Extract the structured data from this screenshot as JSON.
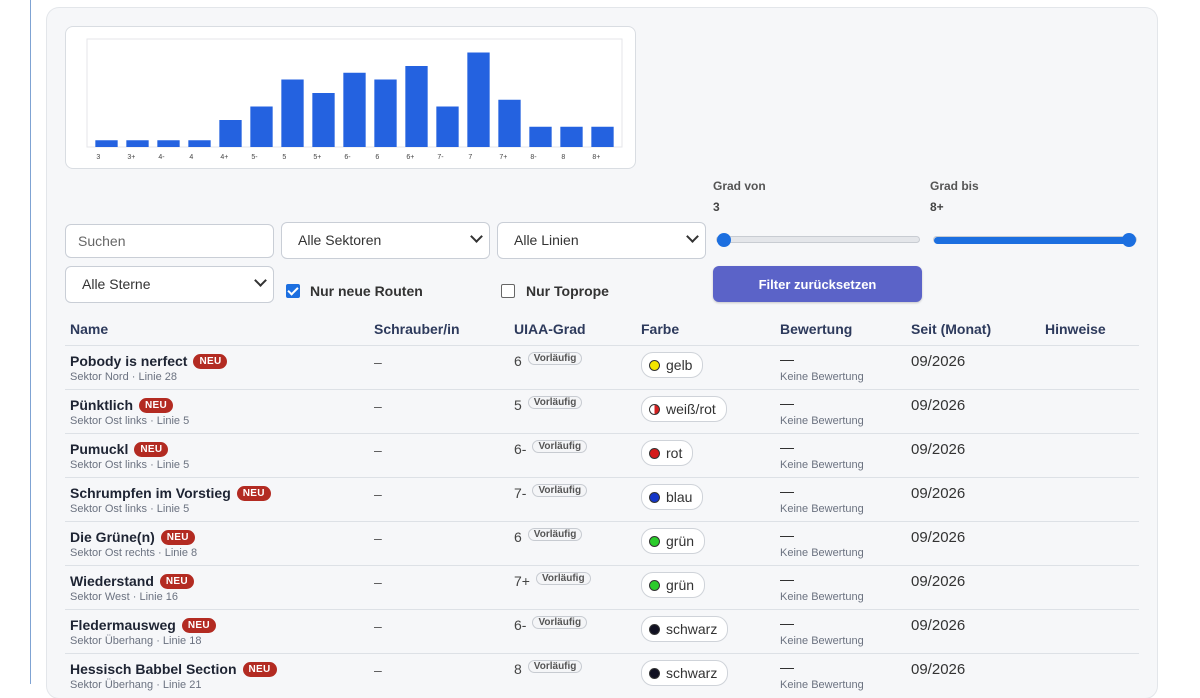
{
  "chart_data": {
    "type": "bar",
    "categories": [
      "3",
      "3+",
      "4-",
      "4",
      "4+",
      "5-",
      "5",
      "5+",
      "6-",
      "6",
      "6+",
      "7-",
      "7",
      "7+",
      "8-",
      "8",
      "8+"
    ],
    "values": [
      1,
      1,
      1,
      1,
      4,
      6,
      10,
      8,
      11,
      10,
      12,
      6,
      14,
      7,
      3,
      3,
      3
    ],
    "ylim": [
      0,
      16
    ],
    "color": "#2462e0",
    "title": "",
    "xlabel": "",
    "ylabel": ""
  },
  "filters": {
    "search_placeholder": "Suchen",
    "sector_select": "Alle Sektoren",
    "line_select": "Alle Linien",
    "stars_select": "Alle Sterne",
    "grade_from_label": "Grad von",
    "grade_from_value": "3",
    "grade_to_label": "Grad bis",
    "grade_to_value": "8+",
    "grade_from_fraction": 0,
    "grade_to_fraction": 1,
    "new_routes_label": "Nur neue Routen",
    "new_routes_checked": true,
    "toprope_label": "Nur Toprope",
    "toprope_checked": false,
    "reset_label": "Filter zurücksetzen"
  },
  "table": {
    "headers": {
      "name": "Name",
      "setter": "Schrauber/in",
      "grade": "UIAA-Grad",
      "color": "Farbe",
      "rating": "Bewertung",
      "since": "Seit (Monat)",
      "notes": "Hinweise"
    },
    "rows": [
      {
        "name": "Pobody is nerfect",
        "badge": "NEU",
        "sub": "Sektor Nord · Linie 28",
        "setter": "–",
        "grade": "6",
        "grade_badge": "Vorläufig",
        "color_name": "gelb",
        "color_hex": "#f3e600",
        "rating": "—",
        "rating_sub": "Keine Bewertung",
        "since": "09/2026"
      },
      {
        "name": "Pünktlich",
        "badge": "NEU",
        "sub": "Sektor Ost links · Linie 5",
        "setter": "–",
        "grade": "5",
        "grade_badge": "Vorläufig",
        "color_name": "weiß/rot",
        "color_hex": "#d21f1f",
        "rating": "—",
        "rating_sub": "Keine Bewertung",
        "since": "09/2026"
      },
      {
        "name": "Pumuckl",
        "badge": "NEU",
        "sub": "Sektor Ost links · Linie 5",
        "setter": "–",
        "grade": "6-",
        "grade_badge": "Vorläufig",
        "color_name": "rot",
        "color_hex": "#d41a1a",
        "rating": "—",
        "rating_sub": "Keine Bewertung",
        "since": "09/2026"
      },
      {
        "name": "Schrumpfen im Vorstieg",
        "badge": "NEU",
        "sub": "Sektor Ost links · Linie 5",
        "setter": "–",
        "grade": "7-",
        "grade_badge": "Vorläufig",
        "color_name": "blau",
        "color_hex": "#1436c8",
        "rating": "—",
        "rating_sub": "Keine Bewertung",
        "since": "09/2026"
      },
      {
        "name": "Die Grüne(n)",
        "badge": "NEU",
        "sub": "Sektor Ost rechts · Linie 8",
        "setter": "–",
        "grade": "6",
        "grade_badge": "Vorläufig",
        "color_name": "grün",
        "color_hex": "#2bcb2b",
        "rating": "—",
        "rating_sub": "Keine Bewertung",
        "since": "09/2026"
      },
      {
        "name": "Wiederstand",
        "badge": "NEU",
        "sub": "Sektor West · Linie 16",
        "setter": "–",
        "grade": "7+",
        "grade_badge": "Vorläufig",
        "color_name": "grün",
        "color_hex": "#2bcb2b",
        "rating": "—",
        "rating_sub": "Keine Bewertung",
        "since": "09/2026"
      },
      {
        "name": "Fledermausweg",
        "badge": "NEU",
        "sub": "Sektor Überhang · Linie 18",
        "setter": "–",
        "grade": "6-",
        "grade_badge": "Vorläufig",
        "color_name": "schwarz",
        "color_hex": "#111122",
        "rating": "—",
        "rating_sub": "Keine Bewertung",
        "since": "09/2026"
      },
      {
        "name": "Hessisch Babbel Section",
        "badge": "NEU",
        "sub": "Sektor Überhang · Linie 21",
        "setter": "–",
        "grade": "8",
        "grade_badge": "Vorläufig",
        "color_name": "schwarz",
        "color_hex": "#111122",
        "rating": "—",
        "rating_sub": "Keine Bewertung",
        "since": "09/2026"
      }
    ]
  }
}
